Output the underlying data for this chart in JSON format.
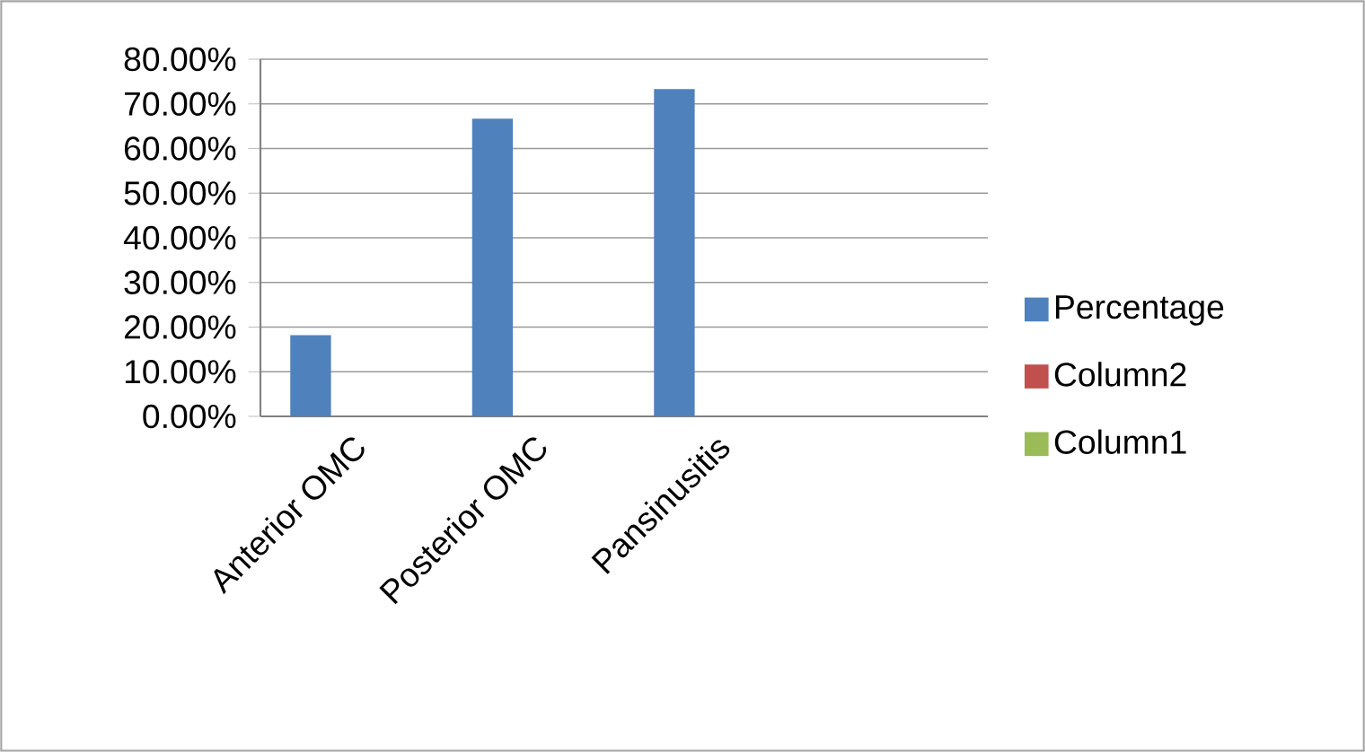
{
  "chart_data": {
    "type": "bar",
    "categories": [
      "Anterior OMC",
      "Posterior OMC",
      "Pansinusitis",
      null
    ],
    "series": [
      {
        "name": "Percentage",
        "color": "#4f81bd",
        "values": [
          18.2,
          66.7,
          73.3,
          null
        ]
      },
      {
        "name": "Column2",
        "color": "#c0504d",
        "values": [
          null,
          null,
          null,
          null
        ]
      },
      {
        "name": "Column1",
        "color": "#9bbb59",
        "values": [
          null,
          null,
          null,
          null
        ]
      }
    ],
    "ylim": [
      0,
      80
    ],
    "yticks": [
      {
        "value": 0,
        "label": "0.00%"
      },
      {
        "value": 10,
        "label": "10.00%"
      },
      {
        "value": 20,
        "label": "20.00%"
      },
      {
        "value": 30,
        "label": "30.00%"
      },
      {
        "value": 40,
        "label": "40.00%"
      },
      {
        "value": 50,
        "label": "50.00%"
      },
      {
        "value": 60,
        "label": "60.00%"
      },
      {
        "value": 70,
        "label": "70.00%"
      },
      {
        "value": 80,
        "label": "80.00%"
      }
    ],
    "grid": "y",
    "legend": "right"
  }
}
